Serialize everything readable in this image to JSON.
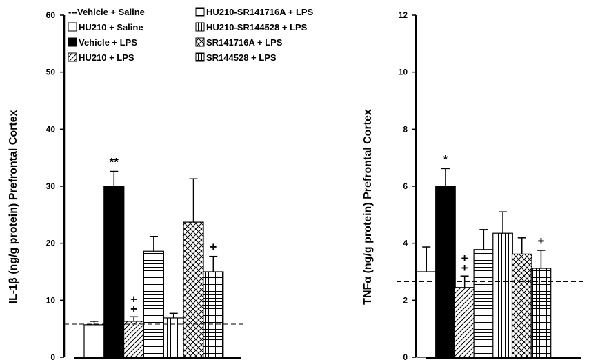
{
  "chart_data": [
    {
      "type": "bar",
      "ylabel": "IL-1β (ng/g protein) Prefrontal Cortex",
      "ylim": [
        0,
        60
      ],
      "yticks": [
        0,
        10,
        20,
        30,
        40,
        50,
        60
      ],
      "reference_line": 5.8,
      "categories": [
        "Vehicle + Saline",
        "Vehicle + LPS",
        "HU210 + LPS",
        "HU210-SR141716A + LPS",
        "HU210-SR144528 + LPS",
        "SR141716A + LPS",
        "SR144528 + LPS"
      ],
      "values": [
        5.7,
        30.0,
        6.3,
        18.6,
        6.9,
        23.7,
        15.0
      ],
      "errors": [
        0.6,
        2.6,
        0.8,
        2.6,
        0.8,
        7.6,
        2.7
      ],
      "annotations": [
        "",
        "**",
        "++",
        "",
        "",
        "",
        "+"
      ]
    },
    {
      "type": "bar",
      "ylabel": "TNFα (ng/g protein) Prefrontal Cortex",
      "ylim": [
        0,
        12
      ],
      "yticks": [
        0,
        2,
        4,
        6,
        8,
        10,
        12
      ],
      "reference_line": 2.65,
      "categories": [
        "Vehicle + Saline",
        "Vehicle + LPS",
        "HU210 + LPS",
        "HU210-SR141716A + LPS",
        "HU210-SR144528 + LPS",
        "SR141716A + LPS",
        "SR144528 + LPS"
      ],
      "values": [
        3.0,
        6.0,
        2.45,
        3.78,
        4.35,
        3.62,
        3.12
      ],
      "errors": [
        0.87,
        0.62,
        0.4,
        0.7,
        0.75,
        0.57,
        0.63
      ],
      "annotations": [
        "",
        "*",
        "++",
        "",
        "",
        "",
        "+"
      ]
    }
  ],
  "legend": [
    {
      "label": "---Vehicle + Saline",
      "pattern": "none"
    },
    {
      "label": "HU210 + Saline",
      "pattern": "empty"
    },
    {
      "label": "Vehicle + LPS",
      "pattern": "solid"
    },
    {
      "label": "HU210 + LPS",
      "pattern": "diag"
    },
    {
      "label": "HU210-SR141716A + LPS",
      "pattern": "hlines"
    },
    {
      "label": "HU210-SR144528 + LPS",
      "pattern": "vlines"
    },
    {
      "label": "SR141716A + LPS",
      "pattern": "cross"
    },
    {
      "label": "SR144528 + LPS",
      "pattern": "grid"
    }
  ],
  "colors": {
    "ink": "#000000",
    "background": "#ffffff"
  }
}
